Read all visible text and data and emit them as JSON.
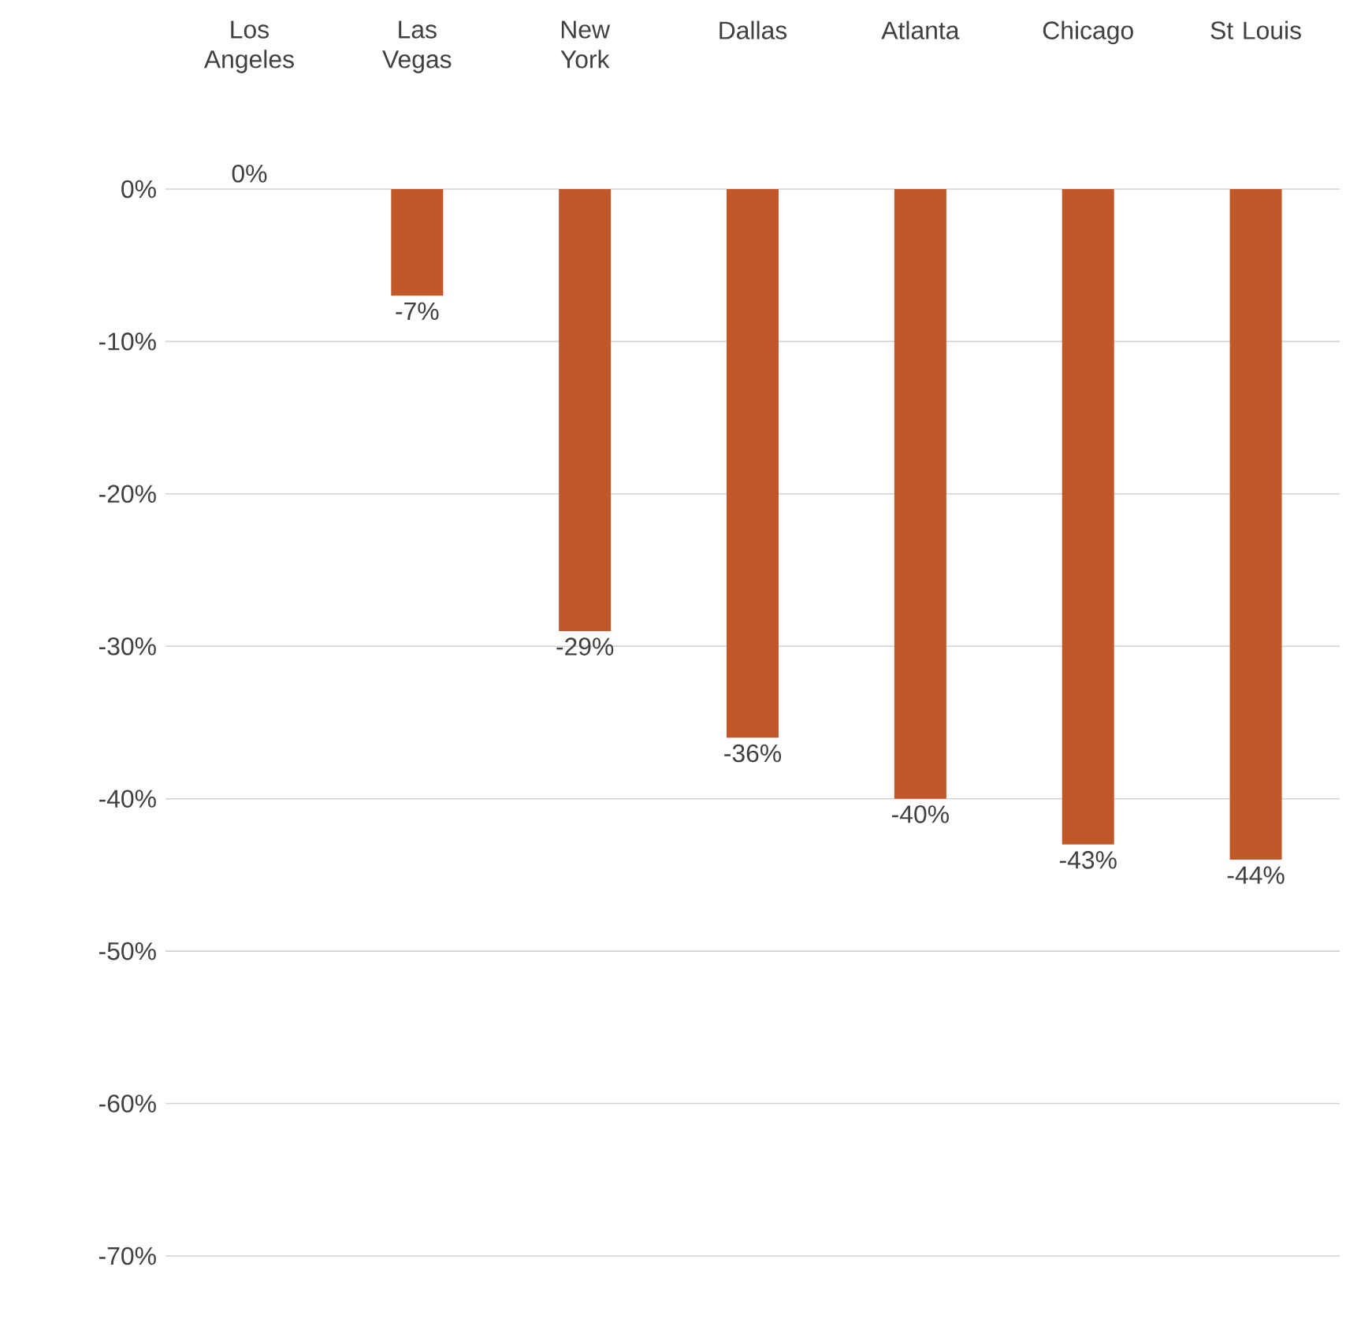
{
  "chart_data": {
    "type": "bar",
    "categories": [
      "Los Angeles",
      "Las Vegas",
      "New York",
      "Dallas",
      "Atlanta",
      "Chicago",
      "St Louis"
    ],
    "values": [
      0,
      -7,
      -29,
      -36,
      -40,
      -43,
      -44
    ],
    "value_labels": [
      "0%",
      "-7%",
      "-29%",
      "-36%",
      "-40%",
      "-43%",
      "-44%"
    ],
    "color": "#c0582a",
    "ylim": [
      -70,
      0
    ],
    "yticks": [
      {
        "value": 0,
        "label": "0%"
      },
      {
        "value": -10,
        "label": "-10%"
      },
      {
        "value": -20,
        "label": "-20%"
      },
      {
        "value": -30,
        "label": "-30%"
      },
      {
        "value": -40,
        "label": "-40%"
      },
      {
        "value": -50,
        "label": "-50%"
      },
      {
        "value": -60,
        "label": "-60%"
      },
      {
        "value": -70,
        "label": "-70%"
      }
    ],
    "grid": "y"
  }
}
